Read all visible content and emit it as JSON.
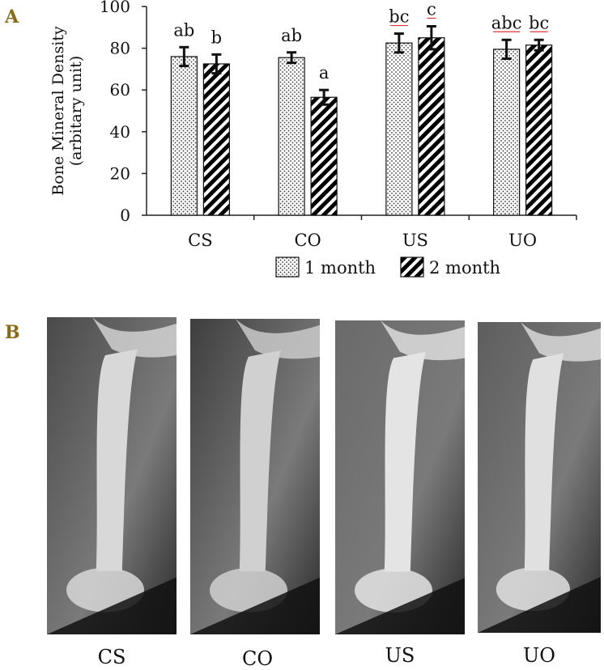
{
  "panel_labels": {
    "a": "A",
    "b": "B"
  },
  "chart_data": {
    "type": "bar",
    "ylabel_line1": "Bone Mineral Density",
    "ylabel_line2": "(arbitary unit)",
    "ylim": [
      0,
      100
    ],
    "yticks": [
      0,
      20,
      40,
      60,
      80,
      100
    ],
    "categories": [
      "CS",
      "CO",
      "US",
      "UO"
    ],
    "series": [
      {
        "name": "1 month",
        "pattern": "dots",
        "values": [
          76,
          75.5,
          82.5,
          79.5
        ],
        "errors": [
          4.5,
          2.5,
          4.5,
          4.5
        ],
        "letters": [
          "ab",
          "ab",
          "bc",
          "abc"
        ]
      },
      {
        "name": "2 month",
        "pattern": "stripes",
        "values": [
          72.5,
          56.5,
          85,
          81.5
        ],
        "errors": [
          4.5,
          3.5,
          5.5,
          2.5
        ],
        "letters": [
          "b",
          "a",
          "c",
          "bc"
        ]
      }
    ],
    "legend_position": "bottom",
    "underlined_letters_color": "#e03030"
  },
  "xray_panels": [
    {
      "label": "CS"
    },
    {
      "label": "CO"
    },
    {
      "label": "US"
    },
    {
      "label": "UO"
    }
  ]
}
